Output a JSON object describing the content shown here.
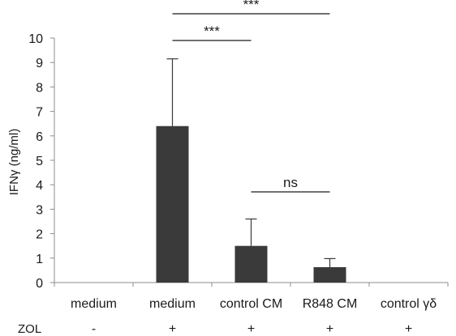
{
  "chart_data": {
    "type": "bar",
    "ylabel": "IFNγ (ng/ml)",
    "ylim": [
      0,
      10
    ],
    "yticks": [
      0,
      1,
      2,
      3,
      4,
      5,
      6,
      7,
      8,
      9,
      10
    ],
    "categories": [
      "medium",
      "medium",
      "control CM",
      "R848 CM",
      "control γδ"
    ],
    "values": [
      0,
      6.4,
      1.5,
      0.63,
      0
    ],
    "errors": [
      0,
      2.75,
      1.1,
      0.35,
      0
    ],
    "bar_color": "#3a3a3a",
    "grid": false,
    "treatment_row": {
      "label": "ZOL",
      "values": [
        "-",
        "+",
        "+",
        "+",
        "+"
      ]
    },
    "significance": [
      {
        "from": 1,
        "to": 3,
        "label": "***"
      },
      {
        "from": 1,
        "to": 2,
        "label": "***"
      },
      {
        "from": 2,
        "to": 3,
        "label": "ns"
      }
    ]
  }
}
